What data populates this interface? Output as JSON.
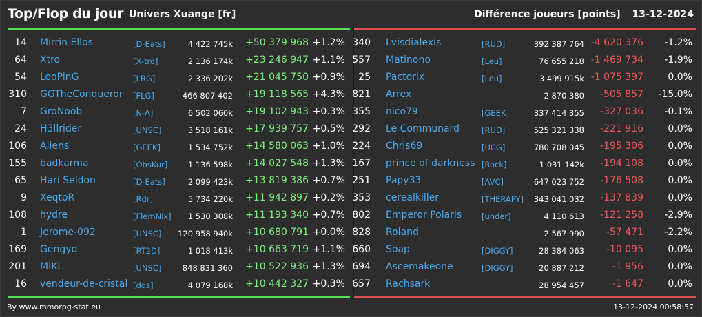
{
  "header": {
    "title": "Top/Flop du jour",
    "server": "Univers Xuange [fr]",
    "metric": "Différence joueurs [points]",
    "date": "13-12-2024"
  },
  "colors": {
    "top_accent": "#55e05a",
    "flop_accent": "#e0504a",
    "gain_text": "#7cf07c",
    "loss_text": "#ee5555",
    "name_text": "#4aa8ea"
  },
  "top": [
    {
      "rank": "14",
      "name": "Mirrin Ellos",
      "guild": "[D-Eats]",
      "points": "4 422 745k",
      "diff": "+50 379 968",
      "pct": "+1.2%"
    },
    {
      "rank": "64",
      "name": "Xtro",
      "guild": "[X-tro]",
      "points": "2 136 174k",
      "diff": "+23 246 947",
      "pct": "+1.1%"
    },
    {
      "rank": "54",
      "name": "LooPinG",
      "guild": "[LRG]",
      "points": "2 336 202k",
      "diff": "+21 045 750",
      "pct": "+0.9%"
    },
    {
      "rank": "310",
      "name": "GGTheConqueror",
      "guild": "[FLG]",
      "points": "466 807 402",
      "diff": "+19 118 565",
      "pct": "+4.3%"
    },
    {
      "rank": "7",
      "name": "GroNoob",
      "guild": "[N-A]",
      "points": "6 502 060k",
      "diff": "+19 102 943",
      "pct": "+0.3%"
    },
    {
      "rank": "24",
      "name": "H3llrider",
      "guild": "[UNSC]",
      "points": "3 518 161k",
      "diff": "+17 939 757",
      "pct": "+0.5%"
    },
    {
      "rank": "106",
      "name": "Aliens",
      "guild": "[GEEK]",
      "points": "1 534 752k",
      "diff": "+14 580 063",
      "pct": "+1.0%"
    },
    {
      "rank": "155",
      "name": "badkarma",
      "guild": "[ObsKur]",
      "points": "1 136 598k",
      "diff": "+14 027 548",
      "pct": "+1.3%"
    },
    {
      "rank": "65",
      "name": "Hari Seldon",
      "guild": "[D-Eats]",
      "points": "2 099 423k",
      "diff": "+13 819 386",
      "pct": "+0.7%"
    },
    {
      "rank": "9",
      "name": "XeqtoR",
      "guild": "[Rdr]",
      "points": "5 734 220k",
      "diff": "+11 942 897",
      "pct": "+0.2%"
    },
    {
      "rank": "108",
      "name": "hydre",
      "guild": "[FlemNix]",
      "points": "1 530 308k",
      "diff": "+11 193 340",
      "pct": "+0.7%"
    },
    {
      "rank": "1",
      "name": "Jerome-092",
      "guild": "[UNSC]",
      "points": "120 958 940k",
      "diff": "+10 680 791",
      "pct": "+0.0%"
    },
    {
      "rank": "169",
      "name": "Gengyo",
      "guild": "[RT2D]",
      "points": "1 018 413k",
      "diff": "+10 663 719",
      "pct": "+1.1%"
    },
    {
      "rank": "201",
      "name": "MIKL",
      "guild": "[UNSC]",
      "points": "848 831 360",
      "diff": "+10 522 936",
      "pct": "+1.3%"
    },
    {
      "rank": "16",
      "name": "vendeur-de-cristal",
      "guild": "[dds]",
      "points": "4 079 168k",
      "diff": "+10 442 327",
      "pct": "+0.3%"
    }
  ],
  "flop": [
    {
      "rank": "340",
      "name": "Lvisdialexis",
      "guild": "[RUD]",
      "points": "392 387 764",
      "diff": "-4 620 376",
      "pct": "-1.2%"
    },
    {
      "rank": "557",
      "name": "Matinono",
      "guild": "[Leu]",
      "points": "76 655 218",
      "diff": "-1 469 734",
      "pct": "-1.9%"
    },
    {
      "rank": "25",
      "name": "Pactorix",
      "guild": "[Leu]",
      "points": "3 499 915k",
      "diff": "-1 075 397",
      "pct": "0.0%"
    },
    {
      "rank": "821",
      "name": "Arrex",
      "guild": "",
      "points": "2 870 380",
      "diff": "-505 857",
      "pct": "-15.0%"
    },
    {
      "rank": "355",
      "name": "nico79",
      "guild": "[GEEK]",
      "points": "337 414 355",
      "diff": "-327 036",
      "pct": "-0.1%"
    },
    {
      "rank": "292",
      "name": "Le Communard",
      "guild": "[RUD]",
      "points": "525 321 338",
      "diff": "-221 916",
      "pct": "0.0%"
    },
    {
      "rank": "224",
      "name": "Chris69",
      "guild": "[UCG]",
      "points": "780 708 045",
      "diff": "-195 306",
      "pct": "0.0%"
    },
    {
      "rank": "167",
      "name": "prince of darkness",
      "guild": "[Rock]",
      "points": "1 031 142k",
      "diff": "-194 108",
      "pct": "0.0%"
    },
    {
      "rank": "251",
      "name": "Papy33",
      "guild": "[AVC]",
      "points": "647 023 752",
      "diff": "-176 508",
      "pct": "0.0%"
    },
    {
      "rank": "353",
      "name": "cerealkiller",
      "guild": "[THERAPY]",
      "points": "343 041 032",
      "diff": "-137 839",
      "pct": "0.0%"
    },
    {
      "rank": "802",
      "name": "Emperor Polaris",
      "guild": "[under]",
      "points": "4 110 613",
      "diff": "-121 258",
      "pct": "-2.9%"
    },
    {
      "rank": "828",
      "name": "Roland",
      "guild": "",
      "points": "2 567 990",
      "diff": "-57 471",
      "pct": "-2.2%"
    },
    {
      "rank": "660",
      "name": "Soap",
      "guild": "[DIGGY]",
      "points": "28 384 063",
      "diff": "-10 095",
      "pct": "0.0%"
    },
    {
      "rank": "694",
      "name": "Ascemakeone",
      "guild": "[DIGGY]",
      "points": "20 887 212",
      "diff": "-1 956",
      "pct": "0.0%"
    },
    {
      "rank": "657",
      "name": "Rachsark",
      "guild": "",
      "points": "28 954 457",
      "diff": "-1 647",
      "pct": "0.0%"
    }
  ],
  "footer": {
    "credit": "By www.mmorpg-stat.eu",
    "timestamp": "13-12-2024 00:58:57"
  }
}
